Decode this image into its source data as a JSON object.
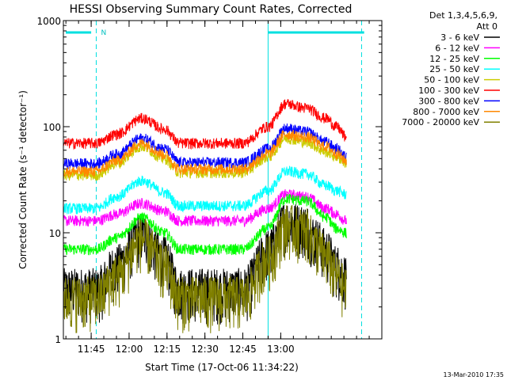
{
  "chart_data": {
    "type": "line",
    "title": "HESSI Observing Summary Count Rates, Corrected",
    "xlabel": "Start Time (17-Oct-06 11:34:22)",
    "ylabel": "Corrected Count Rate (s⁻¹ detector⁻¹)",
    "yscale": "log",
    "ylim": [
      1,
      1000
    ],
    "xlim": [
      "11:34",
      "13:40"
    ],
    "x_ticks": [
      "11:45",
      "12:00",
      "12:15",
      "12:30",
      "12:45",
      "13:00"
    ],
    "y_ticks": [
      "1",
      "10",
      "100",
      "1000"
    ],
    "grid": false,
    "legend_position": "right",
    "legend_header": [
      "Det 1,3,4,5,6,9,",
      "Att 0"
    ],
    "night_marker_label": "N",
    "timestamp": "13-Mar-2010 17:35",
    "series": [
      {
        "name": "3 - 6 keV",
        "color": "#000000",
        "x": [
          "11:34",
          "11:47",
          "11:55",
          "12:05",
          "12:14",
          "12:20",
          "12:45",
          "12:55",
          "13:02",
          "13:10",
          "13:14",
          "13:18",
          "13:22",
          "13:26"
        ],
        "y": [
          3,
          3,
          5,
          10,
          6,
          3,
          3,
          7,
          13,
          12,
          9,
          7,
          5,
          4
        ]
      },
      {
        "name": "6 - 12 keV",
        "color": "#ff00ff",
        "x": [
          "11:34",
          "11:47",
          "11:55",
          "12:05",
          "12:14",
          "12:20",
          "12:45",
          "12:55",
          "13:02",
          "13:10",
          "13:18",
          "13:22",
          "13:26"
        ],
        "y": [
          13,
          13,
          15,
          19,
          16,
          13,
          13,
          17,
          23,
          22,
          17,
          15,
          13
        ]
      },
      {
        "name": "12 - 25 keV",
        "color": "#00ff00",
        "x": [
          "11:34",
          "11:47",
          "11:55",
          "12:05",
          "12:14",
          "12:20",
          "12:45",
          "12:55",
          "13:02",
          "13:10",
          "13:18",
          "13:22",
          "13:26"
        ],
        "y": [
          7,
          7,
          9,
          14,
          10,
          7,
          7,
          11,
          21,
          20,
          14,
          11,
          10
        ]
      },
      {
        "name": "25 - 50 keV",
        "color": "#00ffff",
        "x": [
          "11:34",
          "11:47",
          "11:55",
          "12:05",
          "12:14",
          "12:20",
          "12:45",
          "12:55",
          "13:02",
          "13:10",
          "13:18",
          "13:22",
          "13:26"
        ],
        "y": [
          17,
          17,
          22,
          31,
          24,
          18,
          18,
          25,
          38,
          36,
          28,
          25,
          23
        ]
      },
      {
        "name": "50 - 100 keV",
        "color": "#cccc00",
        "x": [
          "11:34",
          "11:47",
          "11:55",
          "12:05",
          "12:14",
          "12:20",
          "12:45",
          "12:55",
          "13:02",
          "13:10",
          "13:18",
          "13:22",
          "13:26"
        ],
        "y": [
          35,
          35,
          45,
          65,
          50,
          37,
          37,
          52,
          78,
          72,
          58,
          52,
          46
        ]
      },
      {
        "name": "100 - 300 keV",
        "color": "#ff0000",
        "x": [
          "11:34",
          "11:47",
          "11:55",
          "12:05",
          "12:14",
          "12:20",
          "12:45",
          "12:55",
          "13:02",
          "13:10",
          "13:18",
          "13:22",
          "13:26"
        ],
        "y": [
          70,
          70,
          85,
          120,
          95,
          70,
          70,
          100,
          165,
          150,
          120,
          100,
          80
        ]
      },
      {
        "name": "300 - 800 keV",
        "color": "#0000ff",
        "x": [
          "11:34",
          "11:47",
          "11:55",
          "12:05",
          "12:14",
          "12:20",
          "12:45",
          "12:55",
          "13:02",
          "13:10",
          "13:18",
          "13:22",
          "13:26"
        ],
        "y": [
          45,
          45,
          55,
          78,
          62,
          46,
          46,
          62,
          97,
          90,
          72,
          62,
          52
        ]
      },
      {
        "name": "800 - 7000 keV",
        "color": "#ff8800",
        "x": [
          "11:34",
          "11:47",
          "11:55",
          "12:05",
          "12:14",
          "12:20",
          "12:45",
          "12:55",
          "13:02",
          "13:10",
          "13:18",
          "13:22",
          "13:26"
        ],
        "y": [
          38,
          38,
          48,
          70,
          55,
          40,
          40,
          56,
          85,
          80,
          65,
          56,
          48
        ]
      },
      {
        "name": "7000 - 20000 keV",
        "color": "#808000",
        "x": [
          "11:34",
          "11:47",
          "11:55",
          "12:05",
          "12:14",
          "12:20",
          "12:45",
          "12:55",
          "13:02",
          "13:10",
          "13:14",
          "13:18",
          "13:22",
          "13:26"
        ],
        "y": [
          2.5,
          2.5,
          4,
          9,
          5,
          2.5,
          2.5,
          6,
          12,
          11,
          8,
          6,
          4,
          3
        ]
      }
    ]
  }
}
